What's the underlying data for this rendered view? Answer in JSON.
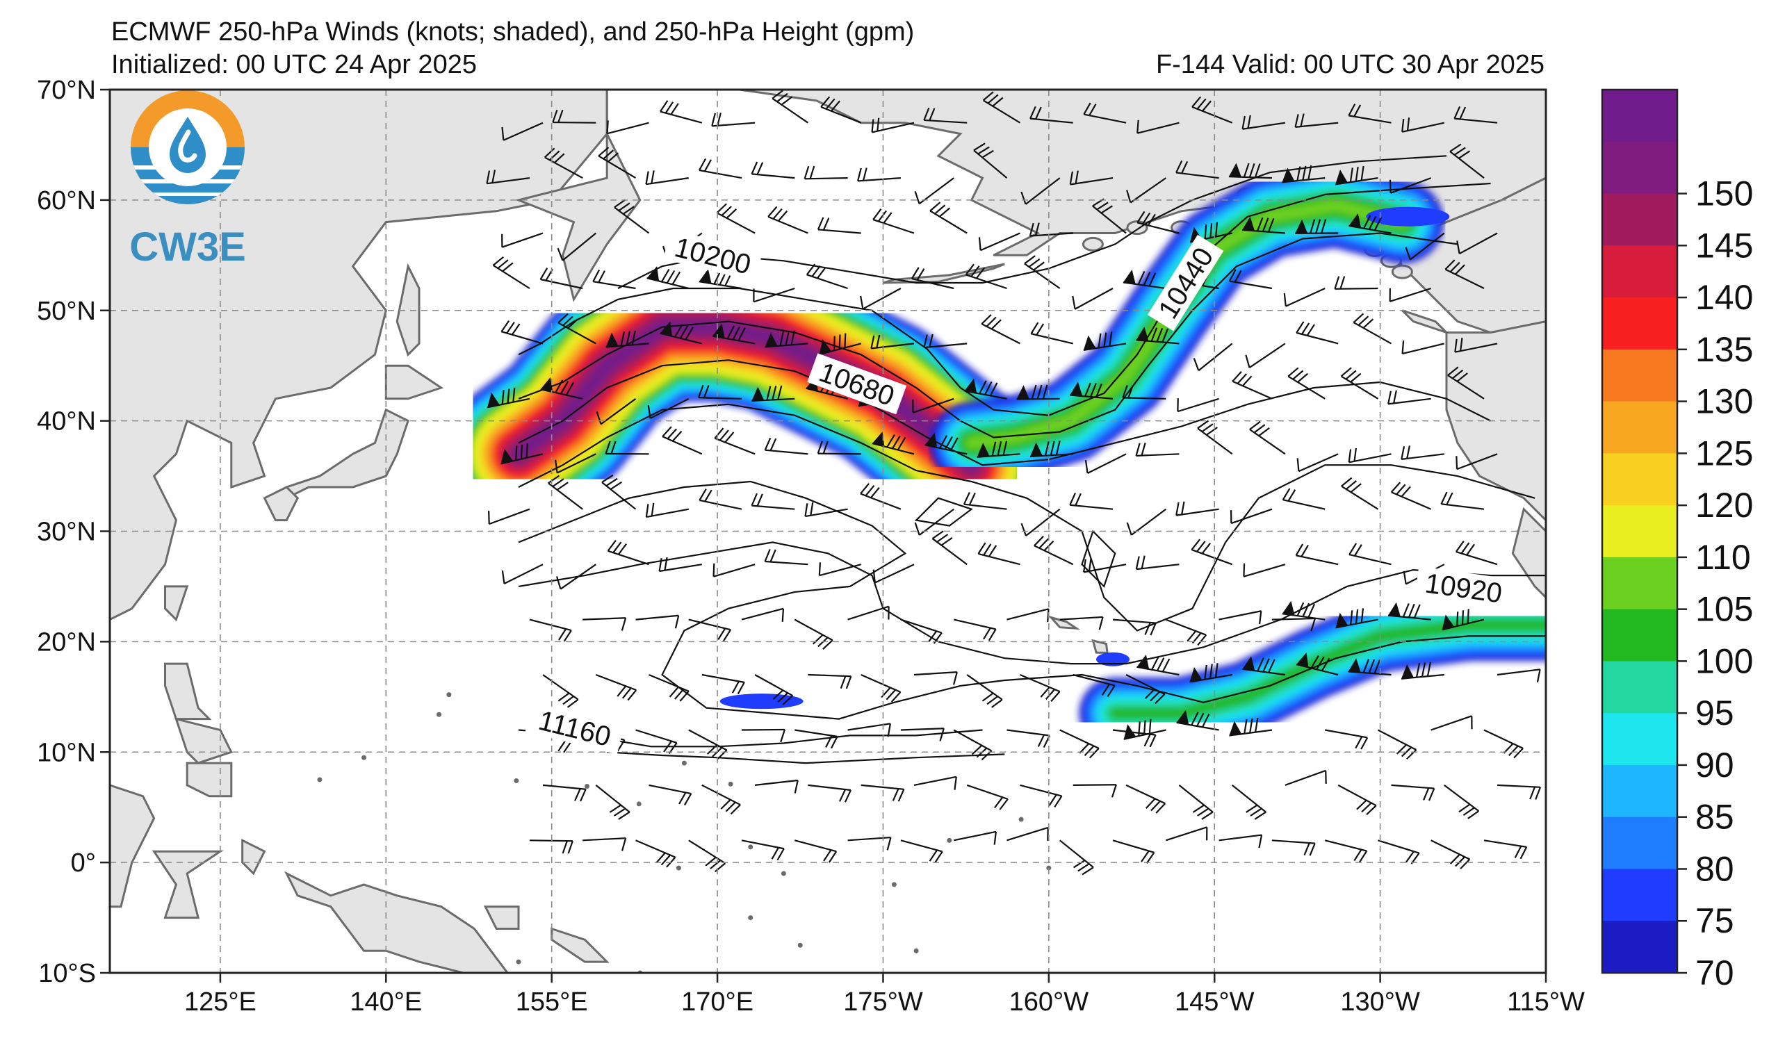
{
  "chart_data": {
    "type": "heatmap",
    "title": "ECMWF 250-hPa Winds (knots; shaded), and 250-hPa Height (gpm)",
    "init_label": "Initialized: 00 UTC 24 Apr 2025",
    "valid_label": "F-144  Valid: 00 UTC 30 Apr 2025",
    "x_ticks": [
      {
        "lon": 125,
        "label": "125°E"
      },
      {
        "lon": 140,
        "label": "140°E"
      },
      {
        "lon": 155,
        "label": "155°E"
      },
      {
        "lon": 170,
        "label": "170°E"
      },
      {
        "lon": 185,
        "label": "175°W"
      },
      {
        "lon": 200,
        "label": "160°W"
      },
      {
        "lon": 215,
        "label": "145°W"
      },
      {
        "lon": 230,
        "label": "130°W"
      },
      {
        "lon": 245,
        "label": "115°W"
      }
    ],
    "y_ticks": [
      {
        "lat": 70,
        "label": "70°N"
      },
      {
        "lat": 60,
        "label": "60°N"
      },
      {
        "lat": 50,
        "label": "50°N"
      },
      {
        "lat": 40,
        "label": "40°N"
      },
      {
        "lat": 30,
        "label": "30°N"
      },
      {
        "lat": 20,
        "label": "20°N"
      },
      {
        "lat": 10,
        "label": "10°N"
      },
      {
        "lat": 0,
        "label": "0°"
      },
      {
        "lat": -10,
        "label": "10°S"
      }
    ],
    "xlim": [
      115,
      245
    ],
    "ylim": [
      -10,
      70
    ],
    "grid": true,
    "colorbar": {
      "labels": [
        "70",
        "75",
        "80",
        "85",
        "90",
        "95",
        "100",
        "105",
        "110",
        "120",
        "125",
        "130",
        "135",
        "140",
        "145",
        "150"
      ],
      "colors": [
        "#1c1cc4",
        "#1f3cff",
        "#1e7cff",
        "#1eb6ff",
        "#1ee6ee",
        "#22d8a0",
        "#22b820",
        "#6cd020",
        "#e8ee20",
        "#f8d020",
        "#f8a820",
        "#f87a20",
        "#f82020",
        "#d81c3c",
        "#a01c5e",
        "#801c80",
        "#701c8c"
      ]
    },
    "contour_labels": [
      {
        "text": "10200",
        "lon": 169.5,
        "lat": 54.6,
        "angle": 14
      },
      {
        "text": "10440",
        "lon": 212.7,
        "lat": 52.3,
        "angle": -58
      },
      {
        "text": "10680",
        "lon": 182.5,
        "lat": 43.0,
        "angle": 20
      },
      {
        "text": "10920",
        "lon": 237.5,
        "lat": 24.5,
        "angle": 8
      },
      {
        "text": "11160",
        "lon": 157.0,
        "lat": 11.8,
        "angle": 14
      }
    ],
    "jet_streams": [
      {
        "name": "",
        "core_lon": [
          152,
          156,
          160,
          165,
          170,
          175,
          180,
          185,
          190,
          193
        ],
        "core_lat": [
          37,
          40,
          45,
          48.5,
          48.5,
          47.5,
          45,
          42.5,
          38.5,
          36
        ],
        "peak_speed": 155
      },
      {
        "name": "",
        "core_lon": [
          193,
          197,
          202,
          207,
          211,
          215,
          220,
          226,
          232
        ],
        "core_lat": [
          38,
          38.5,
          40,
          44,
          50,
          55.5,
          58.5,
          59.5,
          58
        ],
        "peak_speed": 108
      },
      {
        "name": "",
        "core_lon": [
          206,
          212,
          218,
          224,
          230,
          238,
          245
        ],
        "core_lat": [
          13.5,
          13.5,
          15,
          18,
          20.5,
          21.5,
          21.5
        ],
        "peak_speed": 103
      }
    ],
    "logo": {
      "text": "CW3E",
      "colors": [
        "#f39a2b",
        "#2f8ec7"
      ]
    }
  }
}
